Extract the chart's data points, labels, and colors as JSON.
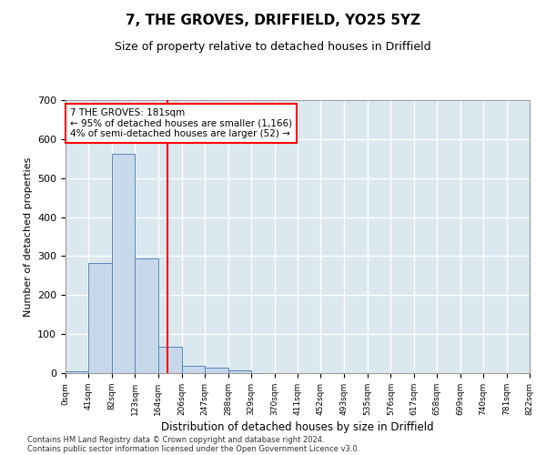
{
  "title": "7, THE GROVES, DRIFFIELD, YO25 5YZ",
  "subtitle": "Size of property relative to detached houses in Driffield",
  "xlabel": "Distribution of detached houses by size in Driffield",
  "ylabel": "Number of detached properties",
  "bar_values": [
    5,
    283,
    563,
    293,
    68,
    18,
    13,
    8,
    0,
    0,
    0,
    0,
    0,
    0,
    0,
    0,
    0,
    0,
    0,
    0
  ],
  "bin_edges": [
    0,
    41,
    82,
    123,
    164,
    206,
    247,
    288,
    329,
    370,
    411,
    452,
    493,
    535,
    576,
    617,
    658,
    699,
    740,
    781,
    822
  ],
  "tick_labels": [
    "0sqm",
    "41sqm",
    "82sqm",
    "123sqm",
    "164sqm",
    "206sqm",
    "247sqm",
    "288sqm",
    "329sqm",
    "370sqm",
    "411sqm",
    "452sqm",
    "493sqm",
    "535sqm",
    "576sqm",
    "617sqm",
    "658sqm",
    "699sqm",
    "740sqm",
    "781sqm",
    "822sqm"
  ],
  "bar_color": "#c8d8eb",
  "bar_edge_color": "#5588bb",
  "vline_x": 181,
  "vline_color": "red",
  "annotation_text": "7 THE GROVES: 181sqm\n← 95% of detached houses are smaller (1,166)\n4% of semi-detached houses are larger (52) →",
  "annotation_box_color": "white",
  "annotation_box_edge": "red",
  "ylim": [
    0,
    700
  ],
  "yticks": [
    0,
    100,
    200,
    300,
    400,
    500,
    600,
    700
  ],
  "axes_bg_color": "#dce8f0",
  "grid_color": "white",
  "footer_line1": "Contains HM Land Registry data © Crown copyright and database right 2024.",
  "footer_line2": "Contains public sector information licensed under the Open Government Licence v3.0."
}
